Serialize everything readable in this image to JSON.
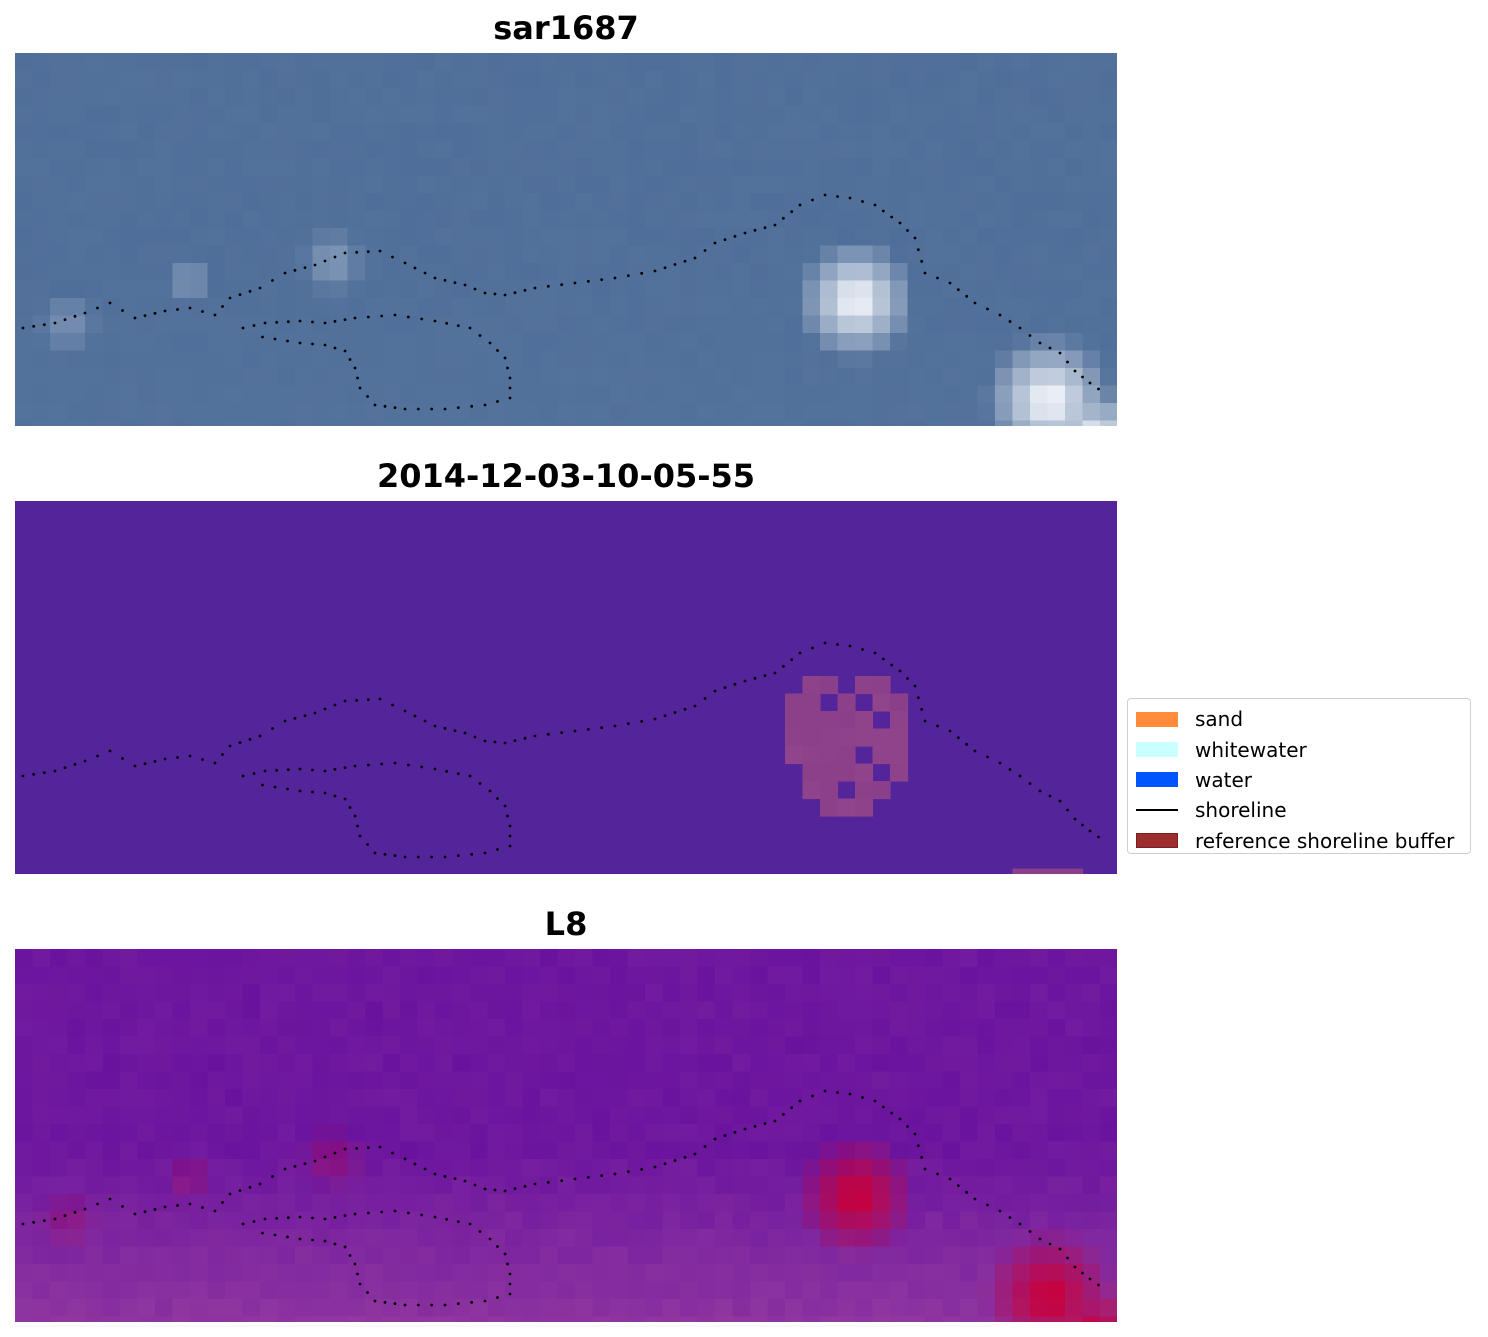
{
  "panels": [
    {
      "title": "sar1687",
      "kind": "rgb"
    },
    {
      "title": "2014-12-03-10-05-55",
      "kind": "class"
    },
    {
      "title": "L8",
      "kind": "index"
    }
  ],
  "legend": {
    "items": [
      {
        "label": "sand",
        "color": "#ff8c3a",
        "type": "patch"
      },
      {
        "label": "whitewater",
        "color": "#c9ffff",
        "type": "patch"
      },
      {
        "label": "water",
        "color": "#0055ff",
        "type": "patch"
      },
      {
        "label": "shoreline",
        "color": "#000000",
        "type": "line"
      },
      {
        "label": "reference shoreline buffer",
        "color": "#9c2e2e",
        "type": "patch"
      }
    ]
  },
  "colors": {
    "sar_base": "#4f6e99",
    "class_background": "#54249a",
    "class_buffer": "#8a3f8a",
    "l8_base": "#6a14a0",
    "l8_hot": "#c8003a"
  }
}
